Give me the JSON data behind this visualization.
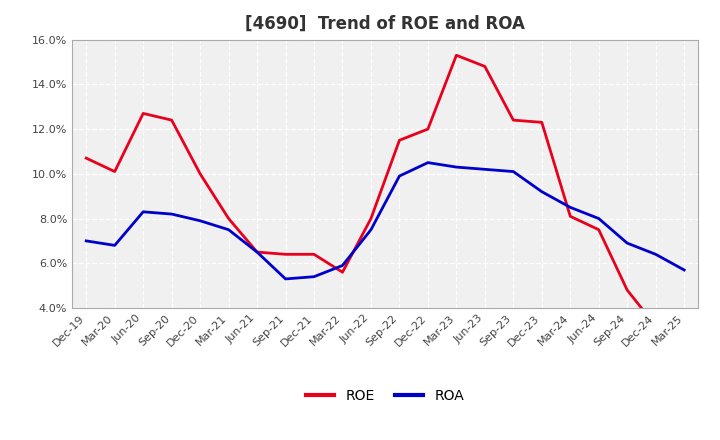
{
  "title": "[4690]  Trend of ROE and ROA",
  "labels": [
    "Dec-19",
    "Mar-20",
    "Jun-20",
    "Sep-20",
    "Dec-20",
    "Mar-21",
    "Jun-21",
    "Sep-21",
    "Dec-21",
    "Mar-22",
    "Jun-22",
    "Sep-22",
    "Dec-22",
    "Mar-23",
    "Jun-23",
    "Sep-23",
    "Dec-23",
    "Mar-24",
    "Jun-24",
    "Sep-24",
    "Dec-24",
    "Mar-25"
  ],
  "ROE": [
    10.7,
    10.1,
    12.7,
    12.4,
    10.0,
    8.0,
    6.5,
    6.4,
    6.4,
    5.6,
    8.0,
    11.5,
    12.0,
    15.3,
    14.8,
    12.4,
    12.3,
    8.1,
    7.5,
    4.8,
    3.2,
    null
  ],
  "ROA": [
    7.0,
    6.8,
    8.3,
    8.2,
    7.9,
    7.5,
    6.5,
    5.3,
    5.4,
    5.9,
    7.5,
    9.9,
    10.5,
    10.3,
    10.2,
    10.1,
    9.2,
    8.5,
    8.0,
    6.9,
    6.4,
    5.7
  ],
  "ROE_color": "#e8001c",
  "ROA_color": "#0000cc",
  "background_color": "#ffffff",
  "plot_bg_color": "#f0f0f0",
  "grid_color": "#ffffff",
  "ylim": [
    4.0,
    16.0
  ],
  "yticks": [
    4.0,
    6.0,
    8.0,
    10.0,
    12.0,
    14.0,
    16.0
  ],
  "title_fontsize": 12,
  "legend_fontsize": 10,
  "tick_fontsize": 8,
  "line_width": 2.0
}
